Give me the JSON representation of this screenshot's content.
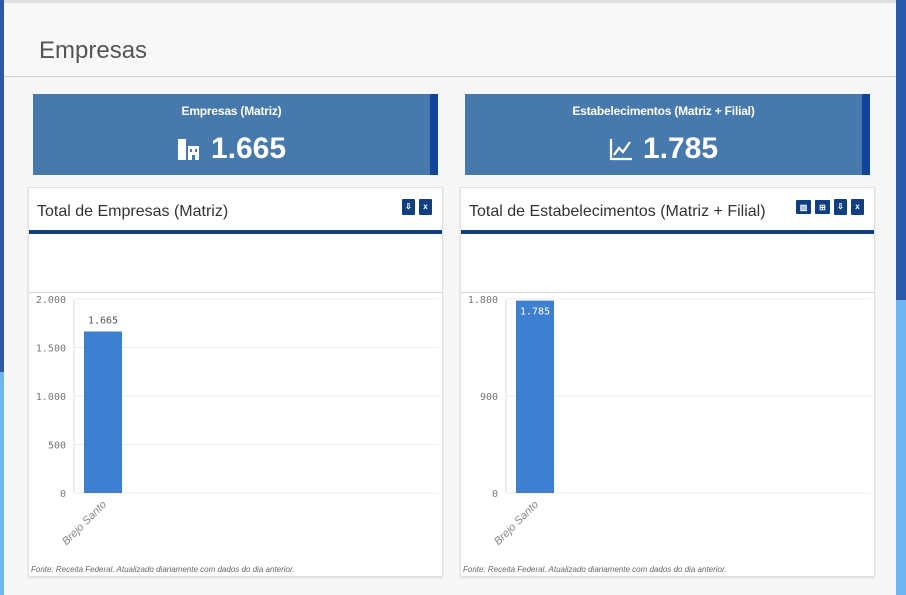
{
  "page": {
    "title": "Empresas"
  },
  "kpis": [
    {
      "label": "Empresas (Matriz)",
      "value": "1.665",
      "icon": "building-icon"
    },
    {
      "label": "Estabelecimentos (Matriz + Filial)",
      "value": "1.785",
      "icon": "line-chart-icon"
    }
  ],
  "panels": [
    {
      "title": "Total de Empresas (Matriz)",
      "tools": [
        "pdf-export-icon",
        "excel-export-icon"
      ],
      "footnote": "Fonte: Receita Federal. Atualizado diariamente com dados do dia anterior."
    },
    {
      "title": "Total de Estabelecimentos (Matriz + Filial)",
      "tools": [
        "bar-chart-icon",
        "table-view-icon",
        "pdf-export-icon",
        "excel-export-icon"
      ],
      "footnote": "Fonte: Receita Federal. Atualizado diariamente com dados do dia anterior."
    }
  ],
  "chart_data": [
    {
      "type": "bar",
      "categories": [
        "Brejo Santo"
      ],
      "values": [
        1665
      ],
      "data_labels": [
        "1.665"
      ],
      "yticks": [
        0,
        500,
        1000,
        1500,
        2000
      ],
      "ytick_labels": [
        "0",
        "500",
        "1.000",
        "1.500",
        "2.000"
      ],
      "ylim": [
        0,
        2000
      ],
      "label_position": "above",
      "grid": true,
      "bar_color": "#3f7fd0"
    },
    {
      "type": "bar",
      "categories": [
        "Brejo Santo"
      ],
      "values": [
        1785
      ],
      "data_labels": [
        "1.785"
      ],
      "yticks": [
        0,
        900,
        1800
      ],
      "ytick_labels": [
        "0",
        "900",
        "1.800"
      ],
      "ylim": [
        0,
        1800
      ],
      "label_position": "inside",
      "grid": true,
      "bar_color": "#3f7fd0"
    }
  ]
}
